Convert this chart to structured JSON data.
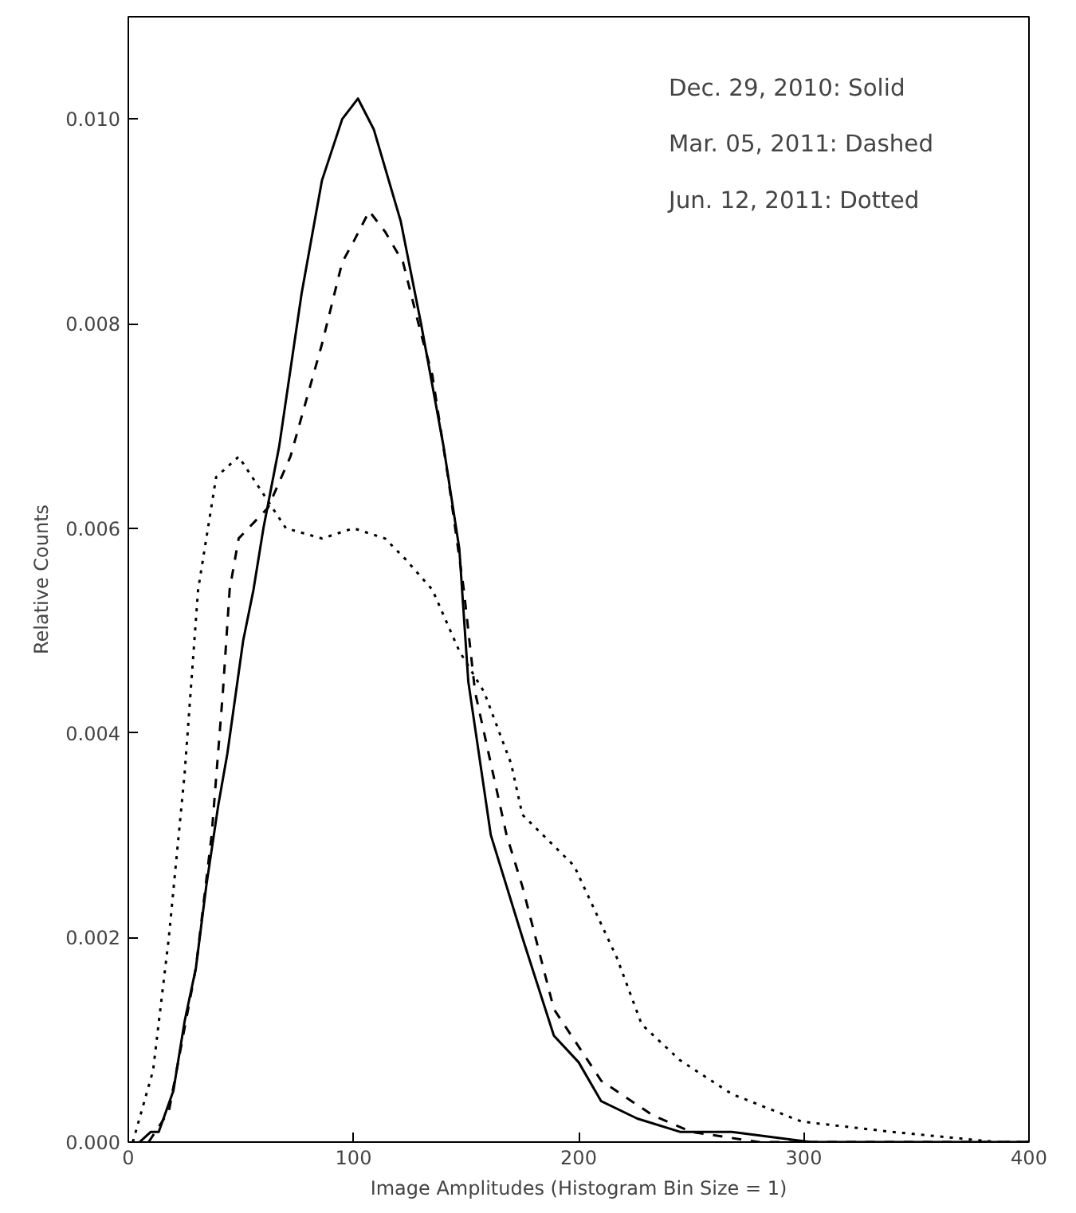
{
  "chart_data": {
    "type": "line",
    "xlabel": "Image Amplitudes (Histogram Bin Size = 1)",
    "ylabel": "Relative Counts",
    "xlim": [
      0,
      400
    ],
    "ylim": [
      0,
      0.011
    ],
    "xticks": [
      0,
      100,
      200,
      300,
      400
    ],
    "yticks": [
      {
        "value": 0,
        "label": "0.000"
      },
      {
        "value": 0.002,
        "label": "0.002"
      },
      {
        "value": 0.004,
        "label": "0.004"
      },
      {
        "value": 0.006,
        "label": "0.006"
      },
      {
        "value": 0.008,
        "label": "0.008"
      },
      {
        "value": 0.01,
        "label": "0.010"
      }
    ],
    "grid": false,
    "annotations": [
      "Dec. 29, 2010: Solid",
      "Mar. 05, 2011: Dashed",
      "Jun. 12, 2011: Dotted"
    ],
    "series": [
      {
        "color": "#000000",
        "line_style": "solid",
        "x": [
          5,
          10,
          13.5,
          20,
          25,
          30,
          34.6,
          40,
          44,
          51,
          55.6,
          60,
          67,
          77,
          86,
          95,
          102,
          109,
          121,
          130,
          140,
          147,
          151,
          161,
          175,
          189,
          200,
          210,
          226,
          245,
          268,
          303,
          400
        ],
        "values": [
          0,
          0.0001,
          0.0001,
          0.0005,
          0.00118,
          0.0017,
          0.0025,
          0.0033,
          0.0038,
          0.0049,
          0.0054,
          0.006,
          0.0068,
          0.0083,
          0.0094,
          0.01,
          0.0102,
          0.0099,
          0.009,
          0.008,
          0.0068,
          0.0058,
          0.0045,
          0.003,
          0.002,
          0.00104,
          0.00078,
          0.0004,
          0.00023,
          0.0001,
          0.0001,
          0,
          0
        ]
      },
      {
        "color": "#000000",
        "line_style": "dashed",
        "x": [
          9,
          18,
          30,
          37,
          42,
          45,
          49,
          62,
          72,
          86,
          95,
          100,
          107,
          114,
          122,
          130,
          135,
          142,
          149,
          154,
          168,
          175,
          189,
          210,
          233,
          250,
          280,
          400
        ],
        "values": [
          0,
          0.0003,
          0.0017,
          0.003,
          0.0044,
          0.0054,
          0.0059,
          0.0062,
          0.0067,
          0.0078,
          0.0086,
          0.0088,
          0.0091,
          0.0089,
          0.0086,
          0.0079,
          0.0075,
          0.0065,
          0.0054,
          0.0044,
          0.003,
          0.0025,
          0.0013,
          0.0006,
          0.00026,
          0.0001,
          0,
          0
        ]
      },
      {
        "color": "#000000",
        "line_style": "dotted",
        "x": [
          2,
          11,
          18,
          25,
          31,
          39,
          49,
          58,
          70,
          86,
          100,
          114,
          123,
          135,
          147,
          158,
          170,
          175,
          198,
          217,
          228,
          245,
          268,
          299,
          339,
          386,
          400
        ],
        "values": [
          0,
          0.0007,
          0.002,
          0.0036,
          0.0054,
          0.0065,
          0.0067,
          0.0064,
          0.006,
          0.0059,
          0.006,
          0.0059,
          0.0057,
          0.0054,
          0.0048,
          0.0044,
          0.0037,
          0.0032,
          0.0027,
          0.0018,
          0.00115,
          0.0008,
          0.00047,
          0.0002,
          0.0001,
          0,
          0
        ]
      }
    ]
  }
}
